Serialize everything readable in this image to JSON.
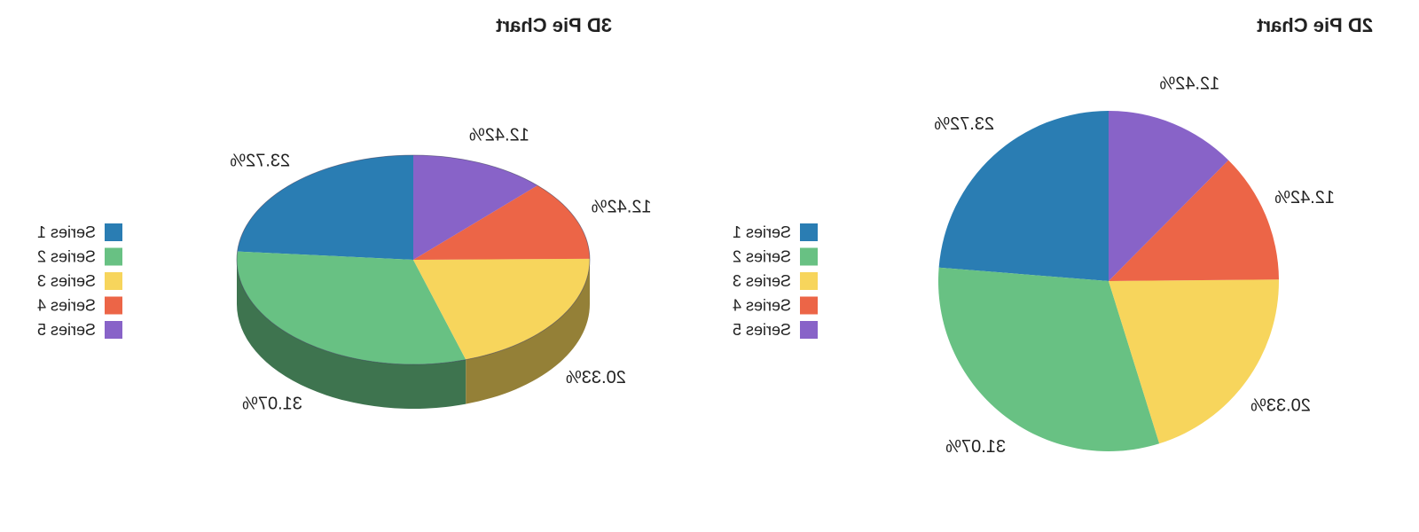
{
  "chart_data": [
    {
      "type": "pie",
      "variant": "3d",
      "title": "3D Pie Chart",
      "mirrored": true,
      "legend_position": "left",
      "series": [
        {
          "name": "Series 1",
          "value": 23.72,
          "label": "23.72%",
          "color": "#2a7db3"
        },
        {
          "name": "Series 2",
          "value": 31.07,
          "label": "31.07%",
          "color": "#68c183"
        },
        {
          "name": "Series 3",
          "value": 20.33,
          "label": "20.33%",
          "color": "#f7d55c"
        },
        {
          "name": "Series 4",
          "value": 12.42,
          "label": "12.42%",
          "color": "#ec6547"
        },
        {
          "name": "Series 5",
          "value": 12.42,
          "label": "12.42%",
          "color": "#8863c8"
        }
      ]
    },
    {
      "type": "pie",
      "variant": "2d",
      "title": "2D Pie Chart",
      "mirrored": true,
      "legend_position": "left",
      "series": [
        {
          "name": "Series 1",
          "value": 23.72,
          "label": "23.72%",
          "color": "#2a7db3"
        },
        {
          "name": "Series 2",
          "value": 31.07,
          "label": "31.07%",
          "color": "#68c183"
        },
        {
          "name": "Series 3",
          "value": 20.33,
          "label": "20.33%",
          "color": "#f7d55c"
        },
        {
          "name": "Series 4",
          "value": 12.42,
          "label": "12.42%",
          "color": "#ec6547"
        },
        {
          "name": "Series 5",
          "value": 12.42,
          "label": "12.42%",
          "color": "#8863c8"
        }
      ]
    }
  ]
}
